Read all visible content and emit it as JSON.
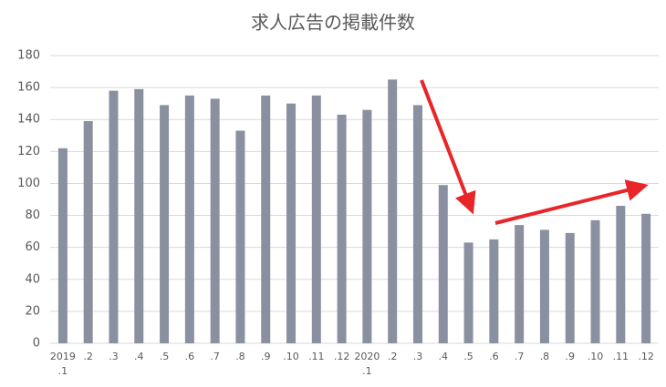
{
  "chart_data": {
    "type": "bar",
    "title": "求人広告の掲載件数",
    "categories": [
      "2019\n.1",
      ".2",
      ".3",
      ".4",
      ".5",
      ".6",
      ".7",
      ".8",
      ".9",
      ".10",
      ".11",
      ".12",
      "2020\n.1",
      ".2",
      ".3",
      ".4",
      ".5",
      ".6",
      ".7",
      ".8",
      ".9",
      ".10",
      ".11",
      ".12"
    ],
    "values": [
      122,
      139,
      158,
      159,
      149,
      155,
      153,
      133,
      155,
      150,
      155,
      143,
      146,
      165,
      149,
      99,
      63,
      65,
      74,
      71,
      69,
      77,
      86,
      81
    ],
    "color": "#8b90a1",
    "ylim": [
      0,
      180
    ],
    "yticks": [
      0,
      20,
      40,
      60,
      80,
      100,
      120,
      140,
      160,
      180
    ],
    "grid": true
  }
}
